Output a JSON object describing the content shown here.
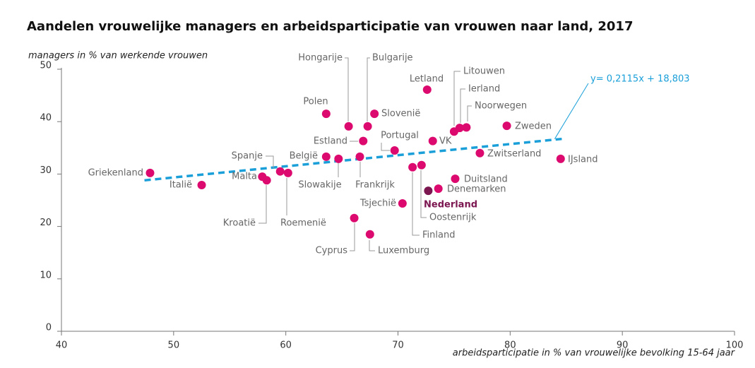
{
  "chart_data": {
    "type": "scatter",
    "title": "Aandelen vrouwelijke managers en arbeidsparticipatie van vrouwen naar land, 2017",
    "y_label": "managers in % van werkende vrouwen",
    "x_label": "arbeidsparticipatie in % van vrouwelijke bevolking 15-64 jaar",
    "xlim": [
      40,
      100
    ],
    "xticks": [
      40,
      50,
      60,
      70,
      80,
      90,
      100
    ],
    "ylim": [
      0,
      50
    ],
    "yticks": [
      0,
      10,
      20,
      30,
      40,
      50
    ],
    "color": "#dc0a6e",
    "highlight_color": "#7b1650",
    "highlight": "Nederland",
    "labels": [
      "Griekenland",
      "Italië",
      "Malta",
      "Kroatië",
      "Spanje",
      "Roemenië",
      "België",
      "Slowakije",
      "Polen",
      "Hongarije",
      "Bulgarije",
      "Frankrijk",
      "Estland",
      "Cyprus",
      "Luxemburg",
      "Slovenië",
      "Portugal",
      "Tsjechië",
      "Letland",
      "Finland",
      "Oostenrijk",
      "Nederland",
      "Denemarken",
      "Duitsland",
      "VK",
      "Litouwen",
      "Ierland",
      "Noorwegen",
      "Zwitserland",
      "Zweden",
      "IJsland"
    ],
    "x": [
      47.9,
      52.5,
      57.9,
      58.3,
      59.5,
      60.2,
      63.6,
      64.7,
      63.6,
      65.6,
      67.3,
      66.6,
      66.9,
      66.1,
      67.5,
      67.9,
      69.7,
      70.4,
      72.6,
      71.3,
      72.1,
      72.7,
      73.6,
      75.1,
      73.1,
      75.0,
      75.5,
      76.1,
      77.3,
      79.7,
      84.5
    ],
    "y": [
      30.2,
      27.9,
      29.5,
      28.8,
      30.5,
      30.2,
      33.3,
      32.9,
      41.5,
      39.1,
      39.1,
      33.3,
      36.3,
      21.6,
      18.5,
      41.5,
      34.5,
      24.4,
      46.1,
      31.3,
      31.7,
      26.8,
      27.2,
      29.1,
      36.3,
      38.1,
      38.8,
      38.9,
      34.0,
      39.2,
      32.9
    ],
    "trendline": {
      "label": "y= 0,2115x + 18,803",
      "color": "#1a9fd9",
      "x": [
        47.4,
        84.6
      ],
      "y": [
        28.8,
        36.7
      ]
    }
  }
}
